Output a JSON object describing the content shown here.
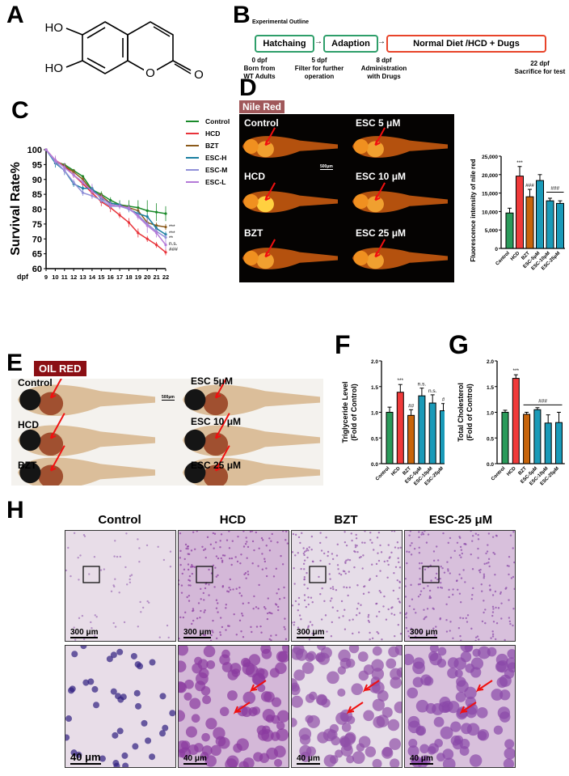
{
  "panel_letters": {
    "a": "A",
    "b": "B",
    "c": "C",
    "d": "D",
    "e": "E",
    "f": "F",
    "g": "G",
    "h": "H"
  },
  "structure": {
    "ho1": "HO",
    "ho2": "HO",
    "o_ring": "O",
    "o_keto": "O"
  },
  "outline": {
    "title": "Experimental Outline",
    "steps": [
      "Hatchaing",
      "Adaption",
      "Normal Diet /HCD + Dugs"
    ],
    "step_colors": [
      "#2e9e6a",
      "#2e9e6a",
      "#e8442a"
    ],
    "notes": [
      {
        "day": "0 dpf",
        "text1": "Born from",
        "text2": "WT Adults"
      },
      {
        "day": "5 dpf",
        "text1": "Filter for further",
        "text2": "operation"
      },
      {
        "day": "8 dpf",
        "text1": "Administration",
        "text2": "with Drugs"
      },
      {
        "day": "22 dpf",
        "text1": "Sacrifice for test",
        "text2": ""
      }
    ]
  },
  "nile_red": {
    "tag": "Nile Red",
    "tag_color": "#a0585a",
    "labels": [
      "Control",
      "ESC 5 μM",
      "HCD",
      "ESC 10 μM",
      "BZT",
      "ESC 25 μM"
    ],
    "scale": "500μm"
  },
  "oil_red": {
    "tag": "OIL RED",
    "tag_color": "#8b0f14",
    "labels": [
      "Control",
      "ESC 5μM",
      "HCD",
      "ESC 10 μM",
      "BZT",
      "ESC 25 μM"
    ],
    "scale": "500μm"
  },
  "histology": {
    "columns": [
      "Control",
      "HCD",
      "BZT",
      "ESC-25 μM"
    ],
    "scale_low": "300 μm",
    "scale_high": "40 μm"
  },
  "chart_data": [
    {
      "id": "C",
      "type": "line",
      "ylabel": "Survival  Rate%",
      "xlabel": "dpf",
      "x": [
        9,
        10,
        11,
        12,
        13,
        14,
        15,
        16,
        17,
        18,
        19,
        20,
        21,
        22
      ],
      "ylim": [
        60,
        100
      ],
      "yticks": [
        60,
        65,
        70,
        75,
        80,
        85,
        90,
        95,
        100
      ],
      "legend": "right",
      "series": [
        {
          "name": "Control",
          "color": "#1a8a2a",
          "values": [
            100,
            96,
            95,
            93,
            91,
            86.5,
            85,
            83,
            81.5,
            81,
            80.5,
            79.5,
            79,
            78.5
          ],
          "err": [
            0,
            1,
            0.5,
            0.5,
            0.5,
            1,
            1,
            1,
            1.5,
            2,
            2.5,
            3.5,
            3,
            2.5
          ]
        },
        {
          "name": "HCD",
          "color": "#e8333a",
          "values": [
            100,
            96.5,
            94.5,
            91.5,
            88.5,
            85.5,
            82.5,
            80.5,
            78,
            75.5,
            72,
            70,
            68,
            65.5
          ],
          "err": [
            0,
            1,
            1,
            1,
            1,
            1,
            1.5,
            1.5,
            1,
            1.5,
            1.5,
            1,
            1,
            1
          ]
        },
        {
          "name": "BZT",
          "color": "#8b5a1a",
          "values": [
            100,
            96,
            94.5,
            92.5,
            90,
            86,
            84.5,
            82,
            81.5,
            80.5,
            79.5,
            75.5,
            74.5,
            74
          ],
          "err": [
            0,
            1,
            1,
            1,
            1,
            1,
            1,
            1,
            1,
            1,
            1,
            1,
            1,
            1
          ]
        },
        {
          "name": "ESC-H",
          "color": "#1a7fa0",
          "values": [
            100,
            95.5,
            93,
            88.5,
            87,
            87,
            83.5,
            82,
            81.5,
            80,
            78.5,
            77.5,
            73.5,
            71.5
          ],
          "err": [
            0,
            1.5,
            1.5,
            1,
            1,
            1,
            1,
            1,
            1,
            1,
            1,
            1,
            1,
            1
          ]
        },
        {
          "name": "ESC-M",
          "color": "#9090d8",
          "values": [
            100,
            96,
            93,
            89,
            85.5,
            84.5,
            83,
            81,
            81,
            80,
            78,
            75,
            72.5,
            70.5
          ],
          "err": [
            0,
            1,
            1.5,
            1,
            1,
            1,
            1,
            1,
            1,
            1,
            1,
            1,
            1,
            1
          ]
        },
        {
          "name": "ESC-L",
          "color": "#b47ad8",
          "values": [
            100,
            96.5,
            94,
            91.5,
            89,
            86,
            84,
            81.5,
            81,
            80.5,
            77.5,
            74.5,
            72,
            68
          ],
          "err": [
            0,
            1.5,
            1.5,
            1,
            1,
            2.5,
            1,
            1,
            1,
            1,
            1,
            2.5,
            1.5,
            1.5
          ]
        }
      ],
      "annotations": [
        "***",
        "***",
        "**",
        "n.s.",
        "###"
      ]
    },
    {
      "id": "D",
      "type": "bar",
      "ylabel": "Fluorescence intensity of nile red",
      "categories": [
        "Control",
        "HCD",
        "BZT",
        "ESC-5μM",
        "ESC-10μM",
        "ESC-25μM"
      ],
      "values": [
        9600,
        19600,
        14000,
        18400,
        12900,
        12200
      ],
      "err": [
        1300,
        2600,
        2000,
        1600,
        700,
        700
      ],
      "colors": [
        "#2a9a5a",
        "#f03a3a",
        "#c8640a",
        "#1a9ab8",
        "#1a9ab8",
        "#1a9ab8"
      ],
      "ylim": [
        0,
        25000
      ],
      "yticks": [
        "0",
        "5,000",
        "10,000",
        "15,000",
        "20,000",
        "25,000"
      ],
      "annotations": [
        {
          "over": 1,
          "text": "***"
        },
        {
          "over": 2,
          "text": "###"
        },
        {
          "span": [
            4,
            5
          ],
          "text": "###"
        }
      ]
    },
    {
      "id": "F",
      "type": "bar",
      "ylabel": "Triglyceride Level",
      "ylabel2": "(Fold of Control)",
      "categories": [
        "Control",
        "HCD",
        "BZT",
        "ESC-5μM",
        "ESC-10μM",
        "ESC-25μM"
      ],
      "values": [
        1.0,
        1.39,
        0.94,
        1.32,
        1.18,
        1.03
      ],
      "err": [
        0.1,
        0.15,
        0.11,
        0.15,
        0.16,
        0.14
      ],
      "colors": [
        "#2a9a5a",
        "#f03a3a",
        "#c8640a",
        "#1a9ab8",
        "#1a9ab8",
        "#1a9ab8"
      ],
      "ylim": [
        0,
        2.0
      ],
      "yticks": [
        "0.0",
        "0.5",
        "1.0",
        "1.5",
        "2.0"
      ],
      "annotations": [
        {
          "over": 1,
          "text": "***"
        },
        {
          "over": 2,
          "text": "##"
        },
        {
          "over": 3,
          "text": "n.s."
        },
        {
          "over": 4,
          "text": "n.s."
        },
        {
          "over": 5,
          "text": "#"
        }
      ]
    },
    {
      "id": "G",
      "type": "bar",
      "ylabel": "Total Cholesterol",
      "ylabel2": "(Fold of Control)",
      "categories": [
        "Control",
        "HCD",
        "BZT",
        "ESC-5μM",
        "ESC-10μM",
        "ESC-25μM"
      ],
      "values": [
        1.0,
        1.66,
        0.96,
        1.05,
        0.79,
        0.8
      ],
      "err": [
        0.04,
        0.07,
        0.04,
        0.04,
        0.16,
        0.2
      ],
      "colors": [
        "#2a9a5a",
        "#f03a3a",
        "#c8640a",
        "#1a9ab8",
        "#1a9ab8",
        "#1a9ab8"
      ],
      "ylim": [
        0,
        2.0
      ],
      "yticks": [
        "0.0",
        "0.5",
        "1.0",
        "1.5",
        "2.0"
      ],
      "annotations": [
        {
          "over": 1,
          "text": "***"
        },
        {
          "span": [
            2,
            5
          ],
          "text": "###"
        }
      ]
    }
  ]
}
